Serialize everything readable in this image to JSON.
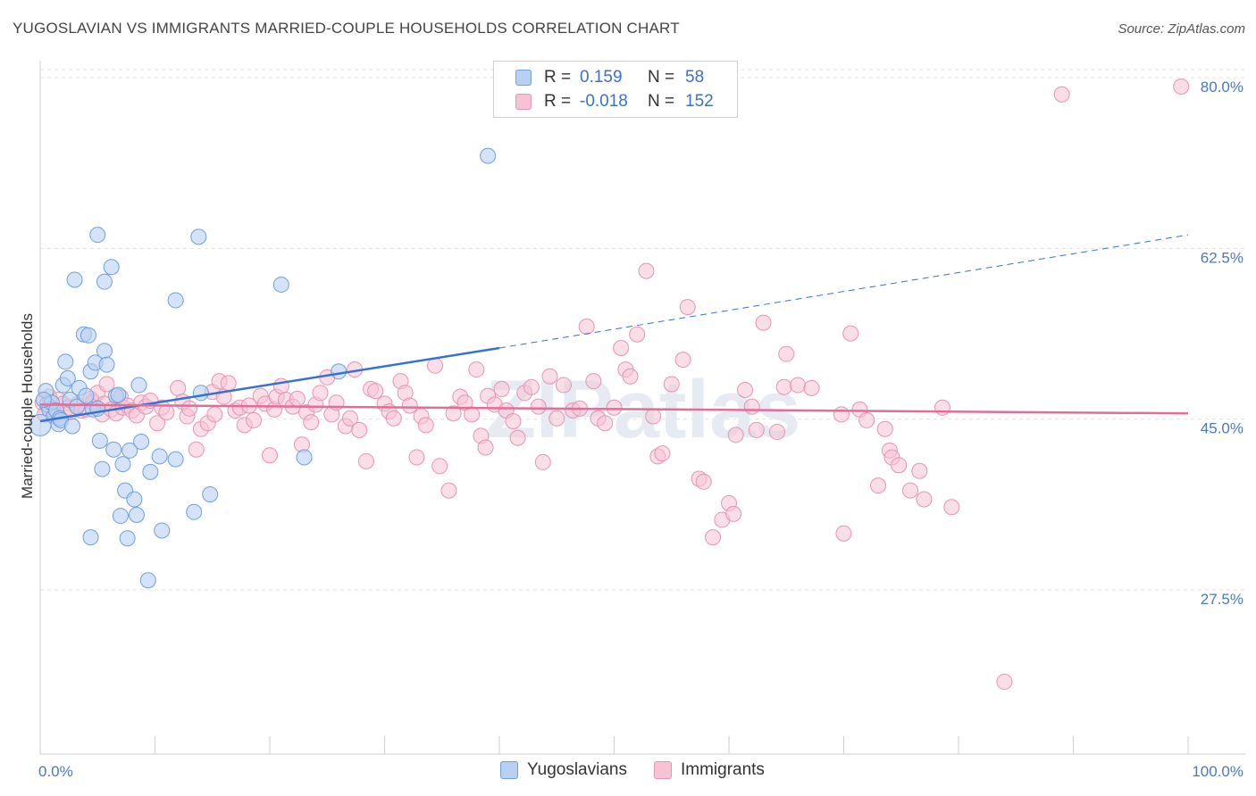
{
  "header": {
    "title": "YUGOSLAVIAN VS IMMIGRANTS MARRIED-COUPLE HOUSEHOLDS CORRELATION CHART",
    "source": "Source: ZipAtlas.com"
  },
  "legend": {
    "rows": [
      {
        "r_label": "R =",
        "r_value": "0.159",
        "n_label": "N =",
        "n_value": "58"
      },
      {
        "r_label": "R =",
        "r_value": "-0.018",
        "n_label": "N =",
        "n_value": "152"
      }
    ]
  },
  "bottom_legend": [
    "Yugoslavians",
    "Immigrants"
  ],
  "watermark": "ZIPatlas",
  "colors": {
    "blue_fill": "#b8d0f2",
    "blue_stroke": "#6f9fdc",
    "blue_line": "#3671d4",
    "pink_fill": "#f6c3d4",
    "pink_stroke": "#e893b0",
    "pink_line": "#e46c97"
  },
  "chart_data": {
    "type": "scatter",
    "title": "YUGOSLAVIAN VS IMMIGRANTS MARRIED-COUPLE HOUSEHOLDS CORRELATION CHART",
    "xlabel": "",
    "ylabel": "Married-couple Households",
    "xlim": [
      0,
      100
    ],
    "ylim": [
      14,
      83
    ],
    "x_tick_labels": [
      "0.0%",
      "100.0%"
    ],
    "y_ticks": [
      27.5,
      45.0,
      62.5,
      80.0
    ],
    "y_tick_labels": [
      "27.5%",
      "45.0%",
      "62.5%",
      "80.0%"
    ],
    "series": [
      {
        "name": "Yugoslavians",
        "trend": {
          "x0": 0,
          "y0": 45.7,
          "x1": 40,
          "y1": 53.2,
          "x_dash_end": 100,
          "y_dash_end": 64.8
        },
        "points": [
          [
            0.0,
            45.3
          ],
          [
            0.5,
            48.8
          ],
          [
            0.6,
            47.4
          ],
          [
            0.8,
            46.9
          ],
          [
            1.0,
            47.6
          ],
          [
            1.2,
            46.2
          ],
          [
            1.4,
            46.8
          ],
          [
            1.6,
            45.4
          ],
          [
            1.7,
            46.0
          ],
          [
            1.8,
            45.8
          ],
          [
            2.0,
            49.4
          ],
          [
            2.2,
            51.8
          ],
          [
            2.4,
            50.1
          ],
          [
            2.6,
            47.9
          ],
          [
            2.8,
            45.2
          ],
          [
            3.0,
            60.2
          ],
          [
            3.2,
            47.2
          ],
          [
            3.4,
            49.1
          ],
          [
            3.8,
            54.6
          ],
          [
            4.0,
            48.3
          ],
          [
            4.2,
            54.5
          ],
          [
            4.4,
            50.8
          ],
          [
            4.6,
            46.9
          ],
          [
            4.8,
            51.7
          ],
          [
            5.0,
            47.0
          ],
          [
            5.0,
            64.8
          ],
          [
            5.2,
            43.7
          ],
          [
            5.4,
            40.8
          ],
          [
            5.6,
            52.9
          ],
          [
            5.6,
            60.0
          ],
          [
            5.8,
            51.5
          ],
          [
            6.2,
            61.5
          ],
          [
            6.4,
            42.8
          ],
          [
            6.6,
            48.3
          ],
          [
            6.8,
            48.4
          ],
          [
            7.0,
            36.0
          ],
          [
            7.2,
            41.3
          ],
          [
            7.4,
            38.6
          ],
          [
            7.6,
            33.7
          ],
          [
            7.8,
            42.7
          ],
          [
            8.2,
            37.7
          ],
          [
            8.4,
            36.1
          ],
          [
            8.6,
            49.4
          ],
          [
            8.8,
            43.6
          ],
          [
            9.4,
            29.4
          ],
          [
            9.6,
            40.5
          ],
          [
            10.4,
            42.1
          ],
          [
            10.6,
            34.5
          ],
          [
            11.8,
            41.8
          ],
          [
            11.8,
            58.1
          ],
          [
            13.4,
            36.4
          ],
          [
            13.8,
            64.6
          ],
          [
            14.0,
            48.6
          ],
          [
            14.8,
            38.2
          ],
          [
            21.0,
            59.7
          ],
          [
            23.0,
            42.0
          ],
          [
            26.0,
            50.8
          ],
          [
            39.0,
            72.9
          ],
          [
            0.3,
            47.9
          ],
          [
            4.4,
            33.8
          ]
        ]
      },
      {
        "name": "Immigrants",
        "trend": {
          "x0": 0,
          "y0": 47.4,
          "x1": 100,
          "y1": 46.5
        },
        "points": [
          [
            0.2,
            47.6
          ],
          [
            0.4,
            46.4
          ],
          [
            0.8,
            48.2
          ],
          [
            1.0,
            47.0
          ],
          [
            1.4,
            46.7
          ],
          [
            1.6,
            47.9
          ],
          [
            2.0,
            47.5
          ],
          [
            2.4,
            47.1
          ],
          [
            2.6,
            46.6
          ],
          [
            3.2,
            47.4
          ],
          [
            3.6,
            46.8
          ],
          [
            4.0,
            46.9
          ],
          [
            4.4,
            48.0
          ],
          [
            4.6,
            47.7
          ],
          [
            5.0,
            48.6
          ],
          [
            5.4,
            46.4
          ],
          [
            5.6,
            47.5
          ],
          [
            5.8,
            49.5
          ],
          [
            6.2,
            46.9
          ],
          [
            6.6,
            46.5
          ],
          [
            7.0,
            48.2
          ],
          [
            7.2,
            47.1
          ],
          [
            7.6,
            47.3
          ],
          [
            8.0,
            46.8
          ],
          [
            8.4,
            46.3
          ],
          [
            8.8,
            47.6
          ],
          [
            9.2,
            47.2
          ],
          [
            9.6,
            47.8
          ],
          [
            10.2,
            45.5
          ],
          [
            10.6,
            47.1
          ],
          [
            11.0,
            46.6
          ],
          [
            12.0,
            49.1
          ],
          [
            12.4,
            47.7
          ],
          [
            12.8,
            46.2
          ],
          [
            13.0,
            47.0
          ],
          [
            13.6,
            42.8
          ],
          [
            14.0,
            44.9
          ],
          [
            14.6,
            45.5
          ],
          [
            15.0,
            48.7
          ],
          [
            15.2,
            46.4
          ],
          [
            15.6,
            49.8
          ],
          [
            16.0,
            48.2
          ],
          [
            16.4,
            49.6
          ],
          [
            17.0,
            46.8
          ],
          [
            17.4,
            47.1
          ],
          [
            17.8,
            45.3
          ],
          [
            18.2,
            47.3
          ],
          [
            18.6,
            45.8
          ],
          [
            19.2,
            48.3
          ],
          [
            19.6,
            47.5
          ],
          [
            20.0,
            42.2
          ],
          [
            20.4,
            46.9
          ],
          [
            20.6,
            48.2
          ],
          [
            21.0,
            49.3
          ],
          [
            21.4,
            47.9
          ],
          [
            22.0,
            47.2
          ],
          [
            22.4,
            48.0
          ],
          [
            22.8,
            43.3
          ],
          [
            23.2,
            46.6
          ],
          [
            23.6,
            45.6
          ],
          [
            24.0,
            47.4
          ],
          [
            24.4,
            48.6
          ],
          [
            25.0,
            50.2
          ],
          [
            25.4,
            46.4
          ],
          [
            25.8,
            47.6
          ],
          [
            26.6,
            45.2
          ],
          [
            27.0,
            46.0
          ],
          [
            27.4,
            51.0
          ],
          [
            27.8,
            44.8
          ],
          [
            28.4,
            41.6
          ],
          [
            28.8,
            49.0
          ],
          [
            29.2,
            48.8
          ],
          [
            30.0,
            47.5
          ],
          [
            30.4,
            46.7
          ],
          [
            30.8,
            46.0
          ],
          [
            31.4,
            49.8
          ],
          [
            31.8,
            48.6
          ],
          [
            32.2,
            47.3
          ],
          [
            32.8,
            42.0
          ],
          [
            33.2,
            46.2
          ],
          [
            33.6,
            45.3
          ],
          [
            34.4,
            51.4
          ],
          [
            34.8,
            41.1
          ],
          [
            35.6,
            38.6
          ],
          [
            36.0,
            46.5
          ],
          [
            36.6,
            48.2
          ],
          [
            37.0,
            47.6
          ],
          [
            37.6,
            46.4
          ],
          [
            38.0,
            51.0
          ],
          [
            38.4,
            44.2
          ],
          [
            38.8,
            43.0
          ],
          [
            39.0,
            48.3
          ],
          [
            39.6,
            47.4
          ],
          [
            40.2,
            49.0
          ],
          [
            40.6,
            46.8
          ],
          [
            41.2,
            45.7
          ],
          [
            41.6,
            44.0
          ],
          [
            42.2,
            48.6
          ],
          [
            42.8,
            49.2
          ],
          [
            43.4,
            47.2
          ],
          [
            43.8,
            41.5
          ],
          [
            44.4,
            50.3
          ],
          [
            45.0,
            46.0
          ],
          [
            45.6,
            49.4
          ],
          [
            46.4,
            46.8
          ],
          [
            47.0,
            47.0
          ],
          [
            47.6,
            55.4
          ],
          [
            48.2,
            49.8
          ],
          [
            48.6,
            46.0
          ],
          [
            49.2,
            45.5
          ],
          [
            50.0,
            47.1
          ],
          [
            50.6,
            53.2
          ],
          [
            51.0,
            51.0
          ],
          [
            51.4,
            50.3
          ],
          [
            52.0,
            54.6
          ],
          [
            52.8,
            61.1
          ],
          [
            53.4,
            46.2
          ],
          [
            53.8,
            42.1
          ],
          [
            54.2,
            42.4
          ],
          [
            55.0,
            49.5
          ],
          [
            56.0,
            52.0
          ],
          [
            56.4,
            57.4
          ],
          [
            57.4,
            39.8
          ],
          [
            57.8,
            39.5
          ],
          [
            58.6,
            33.8
          ],
          [
            59.4,
            35.6
          ],
          [
            60.0,
            37.3
          ],
          [
            60.6,
            44.3
          ],
          [
            61.4,
            48.9
          ],
          [
            62.0,
            47.2
          ],
          [
            62.4,
            44.8
          ],
          [
            63.0,
            55.8
          ],
          [
            64.2,
            44.6
          ],
          [
            64.8,
            49.2
          ],
          [
            65.0,
            52.6
          ],
          [
            66.0,
            49.4
          ],
          [
            67.2,
            49.1
          ],
          [
            69.8,
            46.4
          ],
          [
            70.0,
            34.2
          ],
          [
            70.6,
            54.7
          ],
          [
            71.4,
            46.9
          ],
          [
            72.0,
            45.8
          ],
          [
            73.0,
            39.1
          ],
          [
            73.6,
            44.9
          ],
          [
            74.0,
            42.7
          ],
          [
            74.2,
            42.0
          ],
          [
            74.8,
            41.2
          ],
          [
            75.8,
            38.6
          ],
          [
            76.6,
            40.6
          ],
          [
            77.0,
            37.7
          ],
          [
            78.6,
            47.1
          ],
          [
            79.4,
            36.9
          ],
          [
            84.0,
            19.0
          ],
          [
            89.0,
            79.2
          ],
          [
            99.4,
            80.0
          ],
          [
            60.4,
            36.2
          ]
        ]
      }
    ]
  }
}
